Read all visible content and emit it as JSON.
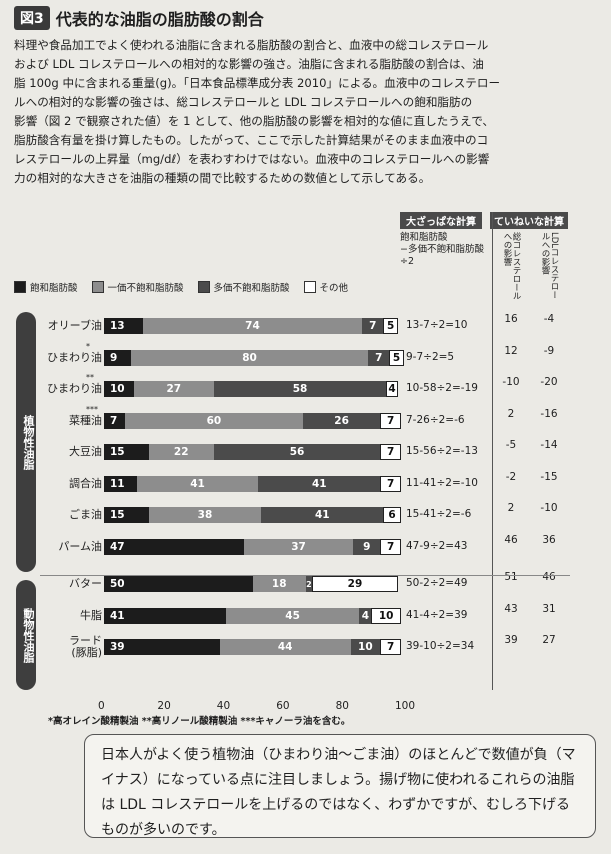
{
  "figure": {
    "badge": "図3",
    "title": "代表的な油脂の脂肪酸の割合"
  },
  "intro": {
    "lines": [
      "料理や食品加工でよく使われる油脂に含まれる脂肪酸の割合と、血液中の総コレステロール",
      "および LDL コレステロールへの相対的な影響の強さ。油脂に含まれる脂肪酸の割合は、油",
      "脂 100g 中に含まれる重量(g)。「日本食品標準成分表 2010」による。血液中のコレステロー",
      "ルへの相対的な影響の強さは、総コレステロールと LDL コレステロールへの飽和脂肪の",
      "影響（図 2 で観察された値）を 1 として、他の脂肪酸の影響を相対的な値に直したうえで、",
      "脂肪酸含有量を掛け算したもの。したがって、ここで示した計算結果がそのまま血液中のコ",
      "レステロールの上昇量（mg/dℓ）を表わすわけではない。血液中のコレステロールへの影響",
      "力の相対的な大きさを油脂の種類の間で比較するための数値として示してある。"
    ]
  },
  "headers": {
    "rough": "大ざっぱな計算",
    "careful": "ていねいな計算",
    "formula": "飽和脂肪酸\n−多価不飽和脂肪酸\n÷2",
    "total_chol": "総コレステロールへの影響",
    "ldl": "LDLコレステロールへの影響"
  },
  "groups": {
    "plant": "植物性油脂",
    "animal": "動物性油脂"
  },
  "chart_data": {
    "type": "bar",
    "orientation": "horizontal",
    "stacked": true,
    "xlim": [
      0,
      100
    ],
    "xticks": [
      "0",
      "20",
      "40",
      "60",
      "80",
      "100"
    ],
    "categories": [
      {
        "label": "オリーブ油",
        "mark": ""
      },
      {
        "label": "ひまわり油",
        "mark": "*"
      },
      {
        "label": "ひまわり油",
        "mark": "**"
      },
      {
        "label": "菜種油",
        "mark": "***"
      },
      {
        "label": "大豆油",
        "mark": ""
      },
      {
        "label": "調合油",
        "mark": ""
      },
      {
        "label": "ごま油",
        "mark": ""
      },
      {
        "label": "パーム油",
        "mark": ""
      },
      {
        "label": "バター",
        "mark": ""
      },
      {
        "label": "牛脂",
        "mark": ""
      },
      {
        "label": "ラード\n(豚脂)",
        "mark": ""
      }
    ],
    "series": [
      {
        "name": "飽和脂肪酸",
        "color": "#1c1c1c",
        "values": [
          13,
          9,
          10,
          7,
          15,
          11,
          15,
          47,
          50,
          41,
          39
        ]
      },
      {
        "name": "一価不飽和脂肪酸",
        "color": "#8d8d8d",
        "values": [
          74,
          80,
          27,
          60,
          22,
          41,
          38,
          37,
          18,
          45,
          44
        ]
      },
      {
        "name": "多価不飽和脂肪酸",
        "color": "#4b4b4b",
        "values": [
          7,
          7,
          58,
          26,
          56,
          41,
          41,
          9,
          2,
          4,
          10
        ]
      },
      {
        "name": "その他",
        "color": "#ffffff",
        "values": [
          5,
          5,
          4,
          7,
          7,
          7,
          6,
          7,
          29,
          10,
          7
        ]
      }
    ],
    "rough_calc": [
      "13-7÷2=10",
      "9-7÷2=5",
      "10-58÷2=-19",
      "7-26÷2=-6",
      "15-56÷2=-13",
      "11-41÷2=-10",
      "15-41÷2=-6",
      "47-9÷2=43",
      "50-2÷2=49",
      "41-4÷2=39",
      "39-10÷2=34"
    ],
    "total_cholesterol": [
      "16",
      "12",
      "-10",
      "2",
      "-5",
      "-2",
      "2",
      "46",
      "51",
      "43",
      "39"
    ],
    "ldl_cholesterol": [
      "-4",
      "-9",
      "-20",
      "-16",
      "-14",
      "-15",
      "-10",
      "36",
      "46",
      "31",
      "27"
    ]
  },
  "footnote": "*高オレイン酸精製油 **高リノール酸精製油 ***キャノーラ油を含む。",
  "note": "日本人がよく使う植物油（ひまわり油〜ごま油）のほとんどで数値が負（マイナス）になっている点に注目しましょう。揚げ物に使われるこれらの油脂は LDL コレステロールを上げるのではなく、わずかですが、むしろ下げるものが多いのです。"
}
